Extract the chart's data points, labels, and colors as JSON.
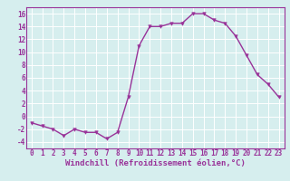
{
  "hours": [
    0,
    1,
    2,
    3,
    4,
    5,
    6,
    7,
    8,
    9,
    10,
    11,
    12,
    13,
    14,
    15,
    16,
    17,
    18,
    19,
    20,
    21,
    22,
    23
  ],
  "values": [
    -1,
    -1.5,
    -2,
    -3,
    -2,
    -2.5,
    -2.5,
    -3.5,
    -2.5,
    3,
    11,
    14,
    14,
    14.5,
    14.5,
    16,
    16,
    15,
    14.5,
    12.5,
    9.5,
    6.5,
    5,
    3
  ],
  "line_color": "#993399",
  "marker_color": "#993399",
  "bg_color": "#d6eeee",
  "grid_color": "#ffffff",
  "xlabel": "Windchill (Refroidissement éolien,°C)",
  "ylim": [
    -5,
    17
  ],
  "xlim": [
    -0.5,
    23.5
  ],
  "yticks": [
    -4,
    -2,
    0,
    2,
    4,
    6,
    8,
    10,
    12,
    14,
    16
  ],
  "xticks": [
    0,
    1,
    2,
    3,
    4,
    5,
    6,
    7,
    8,
    9,
    10,
    11,
    12,
    13,
    14,
    15,
    16,
    17,
    18,
    19,
    20,
    21,
    22,
    23
  ],
  "tick_fontsize": 5.5,
  "xlabel_fontsize": 6.5,
  "line_width": 1.0,
  "marker_size": 2.5
}
